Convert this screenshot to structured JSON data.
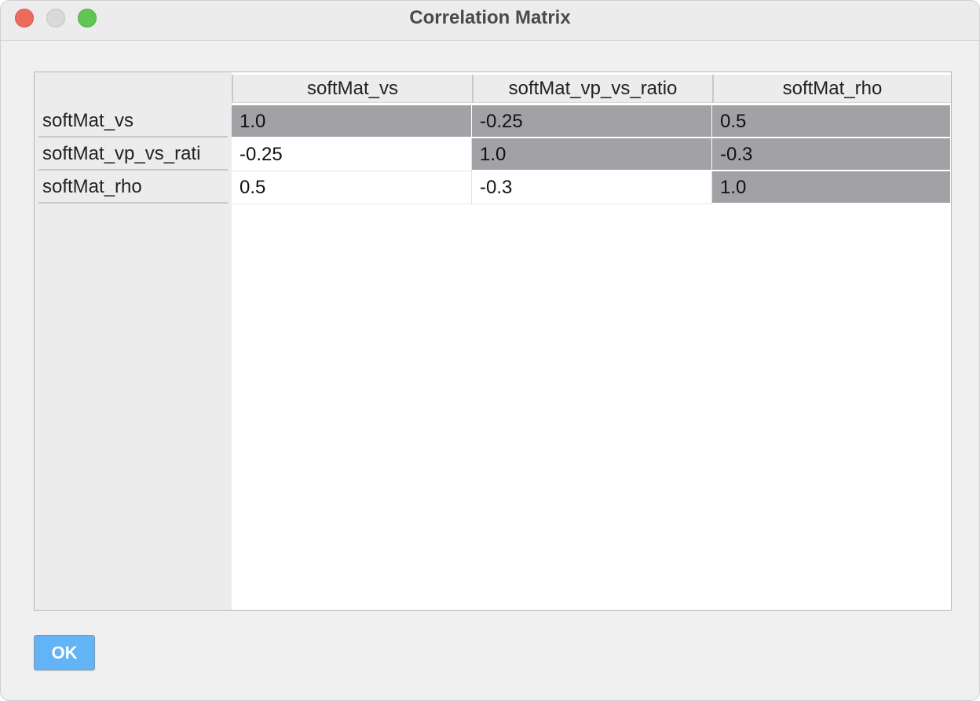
{
  "window": {
    "title": "Correlation Matrix"
  },
  "table": {
    "columns": [
      "softMat_vs",
      "softMat_vp_vs_ratio",
      "softMat_rho"
    ],
    "rows": [
      {
        "header": "softMat_vs",
        "cells": [
          "1.0",
          "-0.25",
          "0.5"
        ],
        "shaded": [
          true,
          true,
          true
        ]
      },
      {
        "header": "softMat_vp_vs_rati",
        "cells": [
          "-0.25",
          "1.0",
          "-0.3"
        ],
        "shaded": [
          false,
          true,
          true
        ]
      },
      {
        "header": "softMat_rho",
        "cells": [
          "0.5",
          "-0.3",
          "1.0"
        ],
        "shaded": [
          false,
          false,
          true
        ]
      }
    ]
  },
  "footer": {
    "ok_label": "OK"
  },
  "colors": {
    "shaded_cell": "#a2a1a6",
    "ok_button": "#62b4f7",
    "close": "#ed6a5e",
    "maximize": "#61c554"
  }
}
